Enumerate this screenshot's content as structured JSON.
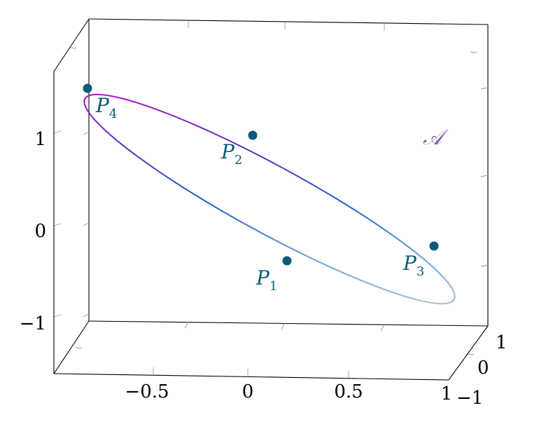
{
  "chart_data": {
    "type": "line3d",
    "title": "",
    "xlabel": "",
    "ylabel": "",
    "zlabel": "",
    "x_ticks": [
      "−0.5",
      "0",
      "0.5",
      "1"
    ],
    "y_ticks": [
      "−1",
      "0",
      "1"
    ],
    "z_ticks": [
      "−1",
      "0",
      "1"
    ],
    "grid": false,
    "colormap": [
      "#c8c8c8",
      "#6fa6dc",
      "#1f5fcc",
      "#6030c0",
      "#c010c8"
    ],
    "point_color": "#0a5a7a",
    "region_color": "#7a5aa8",
    "region_label": "𝒜",
    "points": [
      {
        "name": "P",
        "sub": "1"
      },
      {
        "name": "P",
        "sub": "2"
      },
      {
        "name": "P",
        "sub": "3"
      },
      {
        "name": "P",
        "sub": "4"
      }
    ]
  }
}
